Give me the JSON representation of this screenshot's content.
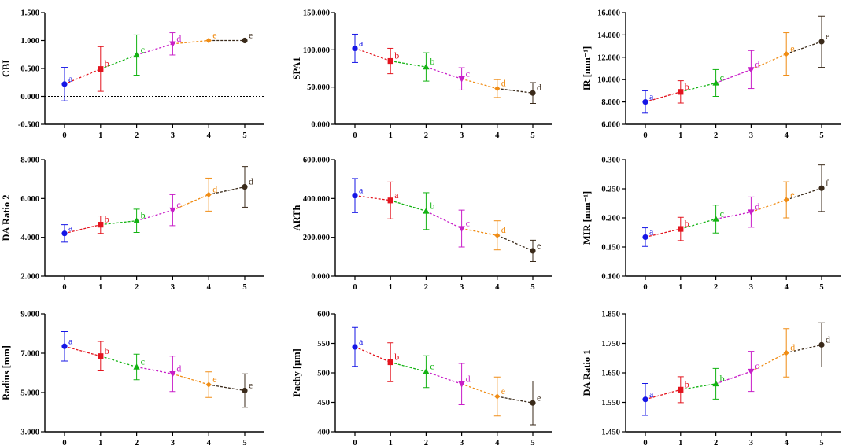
{
  "colors": [
    "#1515e6",
    "#e3141e",
    "#12b312",
    "#c81ec8",
    "#f08c14",
    "#3a2a1a"
  ],
  "chart_data": [
    {
      "type": "line",
      "id": "cbi",
      "ylabel": "CBI",
      "ylim": [
        -0.5,
        1.5
      ],
      "yticks": [
        "-0.500",
        "0.000",
        "0.500",
        "1.000",
        "1.500"
      ],
      "ytick_values": [
        -0.5,
        0,
        0.5,
        1,
        1.5
      ],
      "reference_line": 0,
      "x": [
        0,
        1,
        2,
        3,
        4,
        5
      ],
      "xtick_labels": [
        "0",
        "1",
        "2",
        "3",
        "4",
        "5"
      ],
      "values": [
        0.22,
        0.49,
        0.74,
        0.94,
        1.0,
        1.0
      ],
      "errors": [
        0.3,
        0.4,
        0.36,
        0.2,
        0.0,
        0.0
      ],
      "labels": [
        "a",
        "b",
        "c",
        "d",
        "e",
        "e"
      ]
    },
    {
      "type": "line",
      "id": "spa1",
      "ylabel": "SPA1",
      "ylim": [
        0,
        150
      ],
      "yticks": [
        "0.000",
        "50.000",
        "100.000",
        "150.000"
      ],
      "ytick_values": [
        0,
        50,
        100,
        150
      ],
      "x": [
        0,
        1,
        2,
        3,
        4,
        5
      ],
      "xtick_labels": [
        "0",
        "1",
        "2",
        "3",
        "4",
        "5"
      ],
      "values": [
        102,
        85,
        77,
        61,
        48,
        42
      ],
      "errors": [
        19,
        17,
        19,
        15,
        12,
        14
      ],
      "labels": [
        "a",
        "b",
        "b",
        "c",
        "d",
        "d"
      ]
    },
    {
      "type": "line",
      "id": "ir",
      "ylabel": "IR [mm⁻¹]",
      "ylim": [
        6,
        16
      ],
      "yticks": [
        "6.000",
        "8.000",
        "10.000",
        "12.000",
        "14.000",
        "16.000"
      ],
      "ytick_values": [
        6,
        8,
        10,
        12,
        14,
        16
      ],
      "x": [
        0,
        1,
        2,
        3,
        4,
        5
      ],
      "xtick_labels": [
        "0",
        "1",
        "2",
        "3",
        "4",
        "5"
      ],
      "values": [
        8.0,
        8.9,
        9.7,
        10.9,
        12.3,
        13.4
      ],
      "errors": [
        1.0,
        1.0,
        1.2,
        1.7,
        1.9,
        2.3
      ],
      "labels": [
        "a",
        "b",
        "c",
        "d",
        "e",
        "e"
      ]
    },
    {
      "type": "line",
      "id": "da-ratio-2",
      "ylabel": "DA Ratio 2",
      "ylim": [
        2,
        8
      ],
      "yticks": [
        "2.000",
        "4.000",
        "6.000",
        "8.000"
      ],
      "ytick_values": [
        2,
        4,
        6,
        8
      ],
      "x": [
        0,
        1,
        2,
        3,
        4,
        5
      ],
      "xtick_labels": [
        "0",
        "1",
        "2",
        "3",
        "4",
        "5"
      ],
      "values": [
        4.2,
        4.65,
        4.85,
        5.4,
        6.2,
        6.6
      ],
      "errors": [
        0.45,
        0.45,
        0.6,
        0.8,
        0.85,
        1.05
      ],
      "labels": [
        "a",
        "b",
        "b",
        "c",
        "d",
        "d"
      ]
    },
    {
      "type": "line",
      "id": "arth",
      "ylabel": "ARTh",
      "ylim": [
        0,
        600
      ],
      "yticks": [
        "0.000",
        "200.000",
        "400.000",
        "600.000"
      ],
      "ytick_values": [
        0,
        200,
        400,
        600
      ],
      "x": [
        0,
        1,
        2,
        3,
        4,
        5
      ],
      "xtick_labels": [
        "0",
        "1",
        "2",
        "3",
        "4",
        "5"
      ],
      "values": [
        415,
        390,
        335,
        245,
        210,
        130
      ],
      "errors": [
        88,
        95,
        95,
        95,
        75,
        55
      ],
      "labels": [
        "a",
        "a",
        "b",
        "c",
        "d",
        "e"
      ]
    },
    {
      "type": "line",
      "id": "mir",
      "ylabel": "MIR [mm⁻¹]",
      "ylim": [
        0.1,
        0.3
      ],
      "yticks": [
        "0.100",
        "0.150",
        "0.200",
        "0.250",
        "0.300"
      ],
      "ytick_values": [
        0.1,
        0.15,
        0.2,
        0.25,
        0.3
      ],
      "x": [
        0,
        1,
        2,
        3,
        4,
        5
      ],
      "xtick_labels": [
        "0",
        "1",
        "2",
        "3",
        "4",
        "5"
      ],
      "values": [
        0.167,
        0.181,
        0.198,
        0.21,
        0.231,
        0.251
      ],
      "errors": [
        0.016,
        0.02,
        0.024,
        0.026,
        0.031,
        0.04
      ],
      "labels": [
        "a",
        "b",
        "c",
        "d",
        "e",
        "f"
      ]
    },
    {
      "type": "line",
      "id": "radius",
      "ylabel": "Radius [mm]",
      "ylim": [
        3,
        9
      ],
      "yticks": [
        "3.000",
        "5.000",
        "7.000",
        "9.000"
      ],
      "ytick_values": [
        3,
        5,
        7,
        9
      ],
      "x": [
        0,
        1,
        2,
        3,
        4,
        5
      ],
      "xtick_labels": [
        "0",
        "1",
        "2",
        "3",
        "4",
        "5"
      ],
      "values": [
        7.35,
        6.85,
        6.3,
        5.95,
        5.4,
        5.1
      ],
      "errors": [
        0.75,
        0.75,
        0.65,
        0.9,
        0.65,
        0.85
      ],
      "labels": [
        "a",
        "b",
        "c",
        "d",
        "e",
        "e"
      ]
    },
    {
      "type": "line",
      "id": "pachy",
      "ylabel": "Pachy [μm]",
      "ylim": [
        400,
        600
      ],
      "yticks": [
        "400",
        "450",
        "500",
        "550",
        "600"
      ],
      "ytick_values": [
        400,
        450,
        500,
        550,
        600
      ],
      "x": [
        0,
        1,
        2,
        3,
        4,
        5
      ],
      "xtick_labels": [
        "0",
        "1",
        "2",
        "3",
        "4",
        "5"
      ],
      "values": [
        544,
        518,
        502,
        481,
        460,
        449
      ],
      "errors": [
        33,
        33,
        27,
        35,
        33,
        37
      ],
      "labels": [
        "a",
        "b",
        "c",
        "d",
        "e",
        "e"
      ]
    },
    {
      "type": "line",
      "id": "da-ratio-1",
      "ylabel": "DA Ratio 1",
      "ylim": [
        1.45,
        1.85
      ],
      "yticks": [
        "1.450",
        "1.550",
        "1.650",
        "1.750",
        "1.850"
      ],
      "ytick_values": [
        1.45,
        1.55,
        1.65,
        1.75,
        1.85
      ],
      "x": [
        0,
        1,
        2,
        3,
        4,
        5
      ],
      "xtick_labels": [
        "0",
        "1",
        "2",
        "3",
        "4",
        "5"
      ],
      "values": [
        1.56,
        1.593,
        1.613,
        1.655,
        1.718,
        1.745
      ],
      "errors": [
        0.054,
        0.044,
        0.052,
        0.068,
        0.082,
        0.075
      ],
      "labels": [
        "a",
        "b",
        "b",
        "c",
        "d",
        "d"
      ]
    }
  ]
}
